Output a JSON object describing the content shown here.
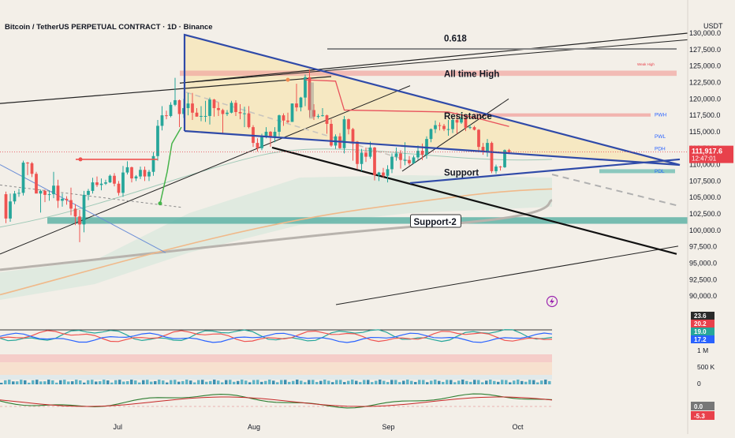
{
  "header": {
    "title": "Bitcoin / TetherUS PERPETUAL CONTRACT · 1D · Binance",
    "currency": "USDT"
  },
  "colors": {
    "background": "#f3efe8",
    "up": "#26a69a",
    "down": "#ef5350",
    "wedge": "#2f4aa8",
    "price_label": "#e8414b"
  },
  "chart_data": {
    "type": "candlestick",
    "y_axis": {
      "min": 87500,
      "max": 130000,
      "ticks": [
        90000,
        92500,
        95000,
        97500,
        100000,
        102500,
        105000,
        107500,
        110000,
        112500,
        115000,
        117500,
        120000,
        122500,
        125000,
        127500,
        130000
      ],
      "tick_labels": [
        "90,000.0",
        "92,500.0",
        "95,000.0",
        "97,500.0",
        "100,000.0",
        "102,500.0",
        "105,000.0",
        "107,500.0",
        "110,000.0",
        "112,500.0",
        "115,000.0",
        "117,500.0",
        "120,000.0",
        "122,500.0",
        "125,000.0",
        "127,500.0",
        "130,000.0"
      ]
    },
    "x_axis": {
      "start": "2025-06-04",
      "end": "2025-10-01",
      "labels": [
        {
          "date": "2025-07-01",
          "text": "Jul"
        },
        {
          "date": "2025-08-01",
          "text": "Aug"
        },
        {
          "date": "2025-09-01",
          "text": "Sep"
        },
        {
          "date": "2025-10-01",
          "text": "Oct"
        }
      ]
    },
    "last_price": {
      "value": 111917.6,
      "text": "111,917.6",
      "countdown": "12:47:01"
    },
    "candles": [
      {
        "d": "2025-06-05",
        "o": 105500,
        "h": 105900,
        "l": 101100,
        "c": 101800
      },
      {
        "d": "2025-06-06",
        "o": 101800,
        "h": 105600,
        "l": 101300,
        "c": 104400
      },
      {
        "d": "2025-06-07",
        "o": 104400,
        "h": 106000,
        "l": 104000,
        "c": 105600
      },
      {
        "d": "2025-06-08",
        "o": 105600,
        "h": 106300,
        "l": 105100,
        "c": 105700
      },
      {
        "d": "2025-06-09",
        "o": 105700,
        "h": 110600,
        "l": 105300,
        "c": 110300
      },
      {
        "d": "2025-06-10",
        "o": 110300,
        "h": 110400,
        "l": 108400,
        "c": 110200
      },
      {
        "d": "2025-06-11",
        "o": 110200,
        "h": 110400,
        "l": 108100,
        "c": 108600
      },
      {
        "d": "2025-06-12",
        "o": 108600,
        "h": 108900,
        "l": 105700,
        "c": 105600
      },
      {
        "d": "2025-06-13",
        "o": 105600,
        "h": 106200,
        "l": 102700,
        "c": 106000
      },
      {
        "d": "2025-06-14",
        "o": 106000,
        "h": 106200,
        "l": 104300,
        "c": 105400
      },
      {
        "d": "2025-06-15",
        "o": 105400,
        "h": 106100,
        "l": 104500,
        "c": 105500
      },
      {
        "d": "2025-06-16",
        "o": 105500,
        "h": 108900,
        "l": 104900,
        "c": 106800
      },
      {
        "d": "2025-06-17",
        "o": 106800,
        "h": 107700,
        "l": 103400,
        "c": 104500
      },
      {
        "d": "2025-06-18",
        "o": 104500,
        "h": 105600,
        "l": 103600,
        "c": 104800
      },
      {
        "d": "2025-06-19",
        "o": 104800,
        "h": 105200,
        "l": 103900,
        "c": 104600
      },
      {
        "d": "2025-06-20",
        "o": 104600,
        "h": 106500,
        "l": 102300,
        "c": 103300
      },
      {
        "d": "2025-06-21",
        "o": 103300,
        "h": 104000,
        "l": 100800,
        "c": 102100
      },
      {
        "d": "2025-06-22",
        "o": 102100,
        "h": 103100,
        "l": 98200,
        "c": 100900
      },
      {
        "d": "2025-06-23",
        "o": 100900,
        "h": 106000,
        "l": 99700,
        "c": 105400
      },
      {
        "d": "2025-06-24",
        "o": 105400,
        "h": 106300,
        "l": 104600,
        "c": 106000
      },
      {
        "d": "2025-06-25",
        "o": 106000,
        "h": 108000,
        "l": 105600,
        "c": 107300
      },
      {
        "d": "2025-06-26",
        "o": 107300,
        "h": 108200,
        "l": 106600,
        "c": 106900
      },
      {
        "d": "2025-06-27",
        "o": 106900,
        "h": 107900,
        "l": 106100,
        "c": 107100
      },
      {
        "d": "2025-06-28",
        "o": 107100,
        "h": 107700,
        "l": 106900,
        "c": 107300
      },
      {
        "d": "2025-06-29",
        "o": 107300,
        "h": 108500,
        "l": 107200,
        "c": 108300
      },
      {
        "d": "2025-06-30",
        "o": 108300,
        "h": 108700,
        "l": 106700,
        "c": 107100
      },
      {
        "d": "2025-07-01",
        "o": 107100,
        "h": 107500,
        "l": 105300,
        "c": 105700
      },
      {
        "d": "2025-07-02",
        "o": 105700,
        "h": 109800,
        "l": 105100,
        "c": 108800
      },
      {
        "d": "2025-07-03",
        "o": 108800,
        "h": 110500,
        "l": 108500,
        "c": 109600
      },
      {
        "d": "2025-07-04",
        "o": 109600,
        "h": 109700,
        "l": 107300,
        "c": 107900
      },
      {
        "d": "2025-07-05",
        "o": 107900,
        "h": 108400,
        "l": 107500,
        "c": 108200
      },
      {
        "d": "2025-07-06",
        "o": 108200,
        "h": 109700,
        "l": 107800,
        "c": 109200
      },
      {
        "d": "2025-07-07",
        "o": 109200,
        "h": 109700,
        "l": 107500,
        "c": 108200
      },
      {
        "d": "2025-07-08",
        "o": 108200,
        "h": 109200,
        "l": 107500,
        "c": 108900
      },
      {
        "d": "2025-07-09",
        "o": 108900,
        "h": 111900,
        "l": 108300,
        "c": 111300
      },
      {
        "d": "2025-07-10",
        "o": 111300,
        "h": 116800,
        "l": 110600,
        "c": 115900
      },
      {
        "d": "2025-07-11",
        "o": 115900,
        "h": 118900,
        "l": 115200,
        "c": 117500
      },
      {
        "d": "2025-07-12",
        "o": 117500,
        "h": 118200,
        "l": 116900,
        "c": 117400
      },
      {
        "d": "2025-07-13",
        "o": 117400,
        "h": 119500,
        "l": 117200,
        "c": 119100
      },
      {
        "d": "2025-07-14",
        "o": 119100,
        "h": 123200,
        "l": 118900,
        "c": 119800
      },
      {
        "d": "2025-07-15",
        "o": 119800,
        "h": 119900,
        "l": 115700,
        "c": 117700
      },
      {
        "d": "2025-07-16",
        "o": 117700,
        "h": 120000,
        "l": 117100,
        "c": 118600
      },
      {
        "d": "2025-07-17",
        "o": 118600,
        "h": 120900,
        "l": 117500,
        "c": 119300
      },
      {
        "d": "2025-07-18",
        "o": 119300,
        "h": 120900,
        "l": 116800,
        "c": 117900
      },
      {
        "d": "2025-07-19",
        "o": 117900,
        "h": 118600,
        "l": 117300,
        "c": 117300
      },
      {
        "d": "2025-07-20",
        "o": 117300,
        "h": 118900,
        "l": 116600,
        "c": 117400
      },
      {
        "d": "2025-07-21",
        "o": 117400,
        "h": 119700,
        "l": 116500,
        "c": 117400
      },
      {
        "d": "2025-07-22",
        "o": 117400,
        "h": 120200,
        "l": 116100,
        "c": 119900
      },
      {
        "d": "2025-07-23",
        "o": 119900,
        "h": 120000,
        "l": 117300,
        "c": 118600
      },
      {
        "d": "2025-07-24",
        "o": 118600,
        "h": 119500,
        "l": 117400,
        "c": 118300
      },
      {
        "d": "2025-07-25",
        "o": 118300,
        "h": 118500,
        "l": 114700,
        "c": 117700
      },
      {
        "d": "2025-07-26",
        "o": 117700,
        "h": 118300,
        "l": 117400,
        "c": 117900
      },
      {
        "d": "2025-07-27",
        "o": 117900,
        "h": 119700,
        "l": 117800,
        "c": 119400
      },
      {
        "d": "2025-07-28",
        "o": 119400,
        "h": 119800,
        "l": 117400,
        "c": 118000
      },
      {
        "d": "2025-07-29",
        "o": 118000,
        "h": 119200,
        "l": 116900,
        "c": 117800
      },
      {
        "d": "2025-07-30",
        "o": 117800,
        "h": 118800,
        "l": 115700,
        "c": 117800
      },
      {
        "d": "2025-07-31",
        "o": 117800,
        "h": 118900,
        "l": 115500,
        "c": 115700
      },
      {
        "d": "2025-08-01",
        "o": 115700,
        "h": 116000,
        "l": 112700,
        "c": 113300
      },
      {
        "d": "2025-08-02",
        "o": 113300,
        "h": 114000,
        "l": 112000,
        "c": 112500
      },
      {
        "d": "2025-08-03",
        "o": 112500,
        "h": 114700,
        "l": 112200,
        "c": 114200
      },
      {
        "d": "2025-08-04",
        "o": 114200,
        "h": 115700,
        "l": 114000,
        "c": 115000
      },
      {
        "d": "2025-08-05",
        "o": 115000,
        "h": 115100,
        "l": 112700,
        "c": 114100
      },
      {
        "d": "2025-08-06",
        "o": 114100,
        "h": 115700,
        "l": 113400,
        "c": 115000
      },
      {
        "d": "2025-08-07",
        "o": 115000,
        "h": 117600,
        "l": 114300,
        "c": 117500
      },
      {
        "d": "2025-08-08",
        "o": 117500,
        "h": 117800,
        "l": 115900,
        "c": 116700
      },
      {
        "d": "2025-08-09",
        "o": 116700,
        "h": 117900,
        "l": 116300,
        "c": 116500
      },
      {
        "d": "2025-08-10",
        "o": 116500,
        "h": 119300,
        "l": 116500,
        "c": 119300
      },
      {
        "d": "2025-08-11",
        "o": 119300,
        "h": 122300,
        "l": 118100,
        "c": 118700
      },
      {
        "d": "2025-08-12",
        "o": 118700,
        "h": 120300,
        "l": 118100,
        "c": 120200
      },
      {
        "d": "2025-08-13",
        "o": 120200,
        "h": 123700,
        "l": 118900,
        "c": 123300
      },
      {
        "d": "2025-08-14",
        "o": 123300,
        "h": 124500,
        "l": 117200,
        "c": 118300
      },
      {
        "d": "2025-08-15",
        "o": 118300,
        "h": 119200,
        "l": 116800,
        "c": 117300
      },
      {
        "d": "2025-08-16",
        "o": 117300,
        "h": 117700,
        "l": 117000,
        "c": 117400
      },
      {
        "d": "2025-08-17",
        "o": 117400,
        "h": 118600,
        "l": 117300,
        "c": 117500
      },
      {
        "d": "2025-08-18",
        "o": 117500,
        "h": 117600,
        "l": 114700,
        "c": 116200
      },
      {
        "d": "2025-08-19",
        "o": 116200,
        "h": 116900,
        "l": 112700,
        "c": 112900
      },
      {
        "d": "2025-08-20",
        "o": 112900,
        "h": 114600,
        "l": 112400,
        "c": 114300
      },
      {
        "d": "2025-08-21",
        "o": 114300,
        "h": 114800,
        "l": 112400,
        "c": 112500
      },
      {
        "d": "2025-08-22",
        "o": 112500,
        "h": 117400,
        "l": 111700,
        "c": 116900
      },
      {
        "d": "2025-08-23",
        "o": 116900,
        "h": 117000,
        "l": 114600,
        "c": 115400
      },
      {
        "d": "2025-08-24",
        "o": 115400,
        "h": 115600,
        "l": 110600,
        "c": 113500
      },
      {
        "d": "2025-08-25",
        "o": 113500,
        "h": 113600,
        "l": 109300,
        "c": 110100
      },
      {
        "d": "2025-08-26",
        "o": 110100,
        "h": 112400,
        "l": 109000,
        "c": 111800
      },
      {
        "d": "2025-08-27",
        "o": 111800,
        "h": 112600,
        "l": 110400,
        "c": 111200
      },
      {
        "d": "2025-08-28",
        "o": 111200,
        "h": 113500,
        "l": 110900,
        "c": 112600
      },
      {
        "d": "2025-08-29",
        "o": 112600,
        "h": 112700,
        "l": 107600,
        "c": 108400
      },
      {
        "d": "2025-08-30",
        "o": 108400,
        "h": 108900,
        "l": 107500,
        "c": 108800
      },
      {
        "d": "2025-08-31",
        "o": 108800,
        "h": 109500,
        "l": 108000,
        "c": 108300
      },
      {
        "d": "2025-09-01",
        "o": 108300,
        "h": 109900,
        "l": 107300,
        "c": 109300
      },
      {
        "d": "2025-09-02",
        "o": 109300,
        "h": 111700,
        "l": 108700,
        "c": 111200
      },
      {
        "d": "2025-09-03",
        "o": 111200,
        "h": 112600,
        "l": 110600,
        "c": 111700
      },
      {
        "d": "2025-09-04",
        "o": 111700,
        "h": 112200,
        "l": 109400,
        "c": 110700
      },
      {
        "d": "2025-09-05",
        "o": 110700,
        "h": 113400,
        "l": 109900,
        "c": 110700
      },
      {
        "d": "2025-09-06",
        "o": 110700,
        "h": 111300,
        "l": 109900,
        "c": 110200
      },
      {
        "d": "2025-09-07",
        "o": 110200,
        "h": 111400,
        "l": 110100,
        "c": 111100
      },
      {
        "d": "2025-09-08",
        "o": 111100,
        "h": 112900,
        "l": 110700,
        "c": 112100
      },
      {
        "d": "2025-09-09",
        "o": 112100,
        "h": 113200,
        "l": 110700,
        "c": 111500
      },
      {
        "d": "2025-09-10",
        "o": 111500,
        "h": 114300,
        "l": 110900,
        "c": 113900
      },
      {
        "d": "2025-09-11",
        "o": 113900,
        "h": 115500,
        "l": 113400,
        "c": 115400
      },
      {
        "d": "2025-09-12",
        "o": 115400,
        "h": 116700,
        "l": 114800,
        "c": 116000
      },
      {
        "d": "2025-09-13",
        "o": 116000,
        "h": 116400,
        "l": 115200,
        "c": 115900
      },
      {
        "d": "2025-09-14",
        "o": 115900,
        "h": 116200,
        "l": 115100,
        "c": 115400
      },
      {
        "d": "2025-09-15",
        "o": 115400,
        "h": 116800,
        "l": 114400,
        "c": 115400
      },
      {
        "d": "2025-09-16",
        "o": 115400,
        "h": 117000,
        "l": 114800,
        "c": 116800
      },
      {
        "d": "2025-09-17",
        "o": 116800,
        "h": 117900,
        "l": 114700,
        "c": 116400
      },
      {
        "d": "2025-09-18",
        "o": 116400,
        "h": 117900,
        "l": 116200,
        "c": 117100
      },
      {
        "d": "2025-09-19",
        "o": 117100,
        "h": 117500,
        "l": 115100,
        "c": 115600
      },
      {
        "d": "2025-09-20",
        "o": 115600,
        "h": 116100,
        "l": 115400,
        "c": 115700
      },
      {
        "d": "2025-09-21",
        "o": 115700,
        "h": 115900,
        "l": 115200,
        "c": 115300
      },
      {
        "d": "2025-09-22",
        "o": 115300,
        "h": 115400,
        "l": 112000,
        "c": 112700
      },
      {
        "d": "2025-09-23",
        "o": 112700,
        "h": 113300,
        "l": 111500,
        "c": 112000
      },
      {
        "d": "2025-09-24",
        "o": 112000,
        "h": 113900,
        "l": 111200,
        "c": 113300
      },
      {
        "d": "2025-09-25",
        "o": 113300,
        "h": 113500,
        "l": 108700,
        "c": 109000
      },
      {
        "d": "2025-09-26",
        "o": 109000,
        "h": 110000,
        "l": 108600,
        "c": 109700
      },
      {
        "d": "2025-09-27",
        "o": 109700,
        "h": 109800,
        "l": 109100,
        "c": 109600
      },
      {
        "d": "2025-09-28",
        "o": 109600,
        "h": 112300,
        "l": 109500,
        "c": 112200
      },
      {
        "d": "2025-09-29",
        "o": 112200,
        "h": 112400,
        "l": 111600,
        "c": 111900
      }
    ],
    "annotations": [
      {
        "text": "0.618",
        "date": "2025-09-14",
        "price": 129200
      },
      {
        "text": "All time High",
        "date": "2025-09-14",
        "price": 123800
      },
      {
        "text": "Resistance",
        "date": "2025-09-14",
        "price": 117400
      },
      {
        "text": "Support",
        "date": "2025-09-14",
        "price": 108800
      },
      {
        "text": "Support-2",
        "date": "2025-09-07",
        "price": 101300
      }
    ],
    "level_labels": [
      {
        "text": "PWH",
        "price": 117600
      },
      {
        "text": "PWL",
        "price": 114300
      },
      {
        "text": "PDH",
        "price": 112400
      },
      {
        "text": "PDL",
        "price": 109000
      }
    ],
    "small_label": {
      "text": "Weak High",
      "price": 125100
    },
    "pane_values": [
      {
        "text": "23.6",
        "bg": "#2a2a2a"
      },
      {
        "text": "20.2",
        "bg": "#e8414b"
      },
      {
        "text": "19.0",
        "bg": "#26a69a"
      },
      {
        "text": "17.2",
        "bg": "#2962ff"
      }
    ],
    "volume_labels": [
      "1 M",
      "500 K",
      "0"
    ],
    "macd_values": [
      {
        "text": "0.0",
        "bg": "#777777"
      },
      {
        "text": "-5.3",
        "bg": "#e8414b"
      }
    ]
  }
}
